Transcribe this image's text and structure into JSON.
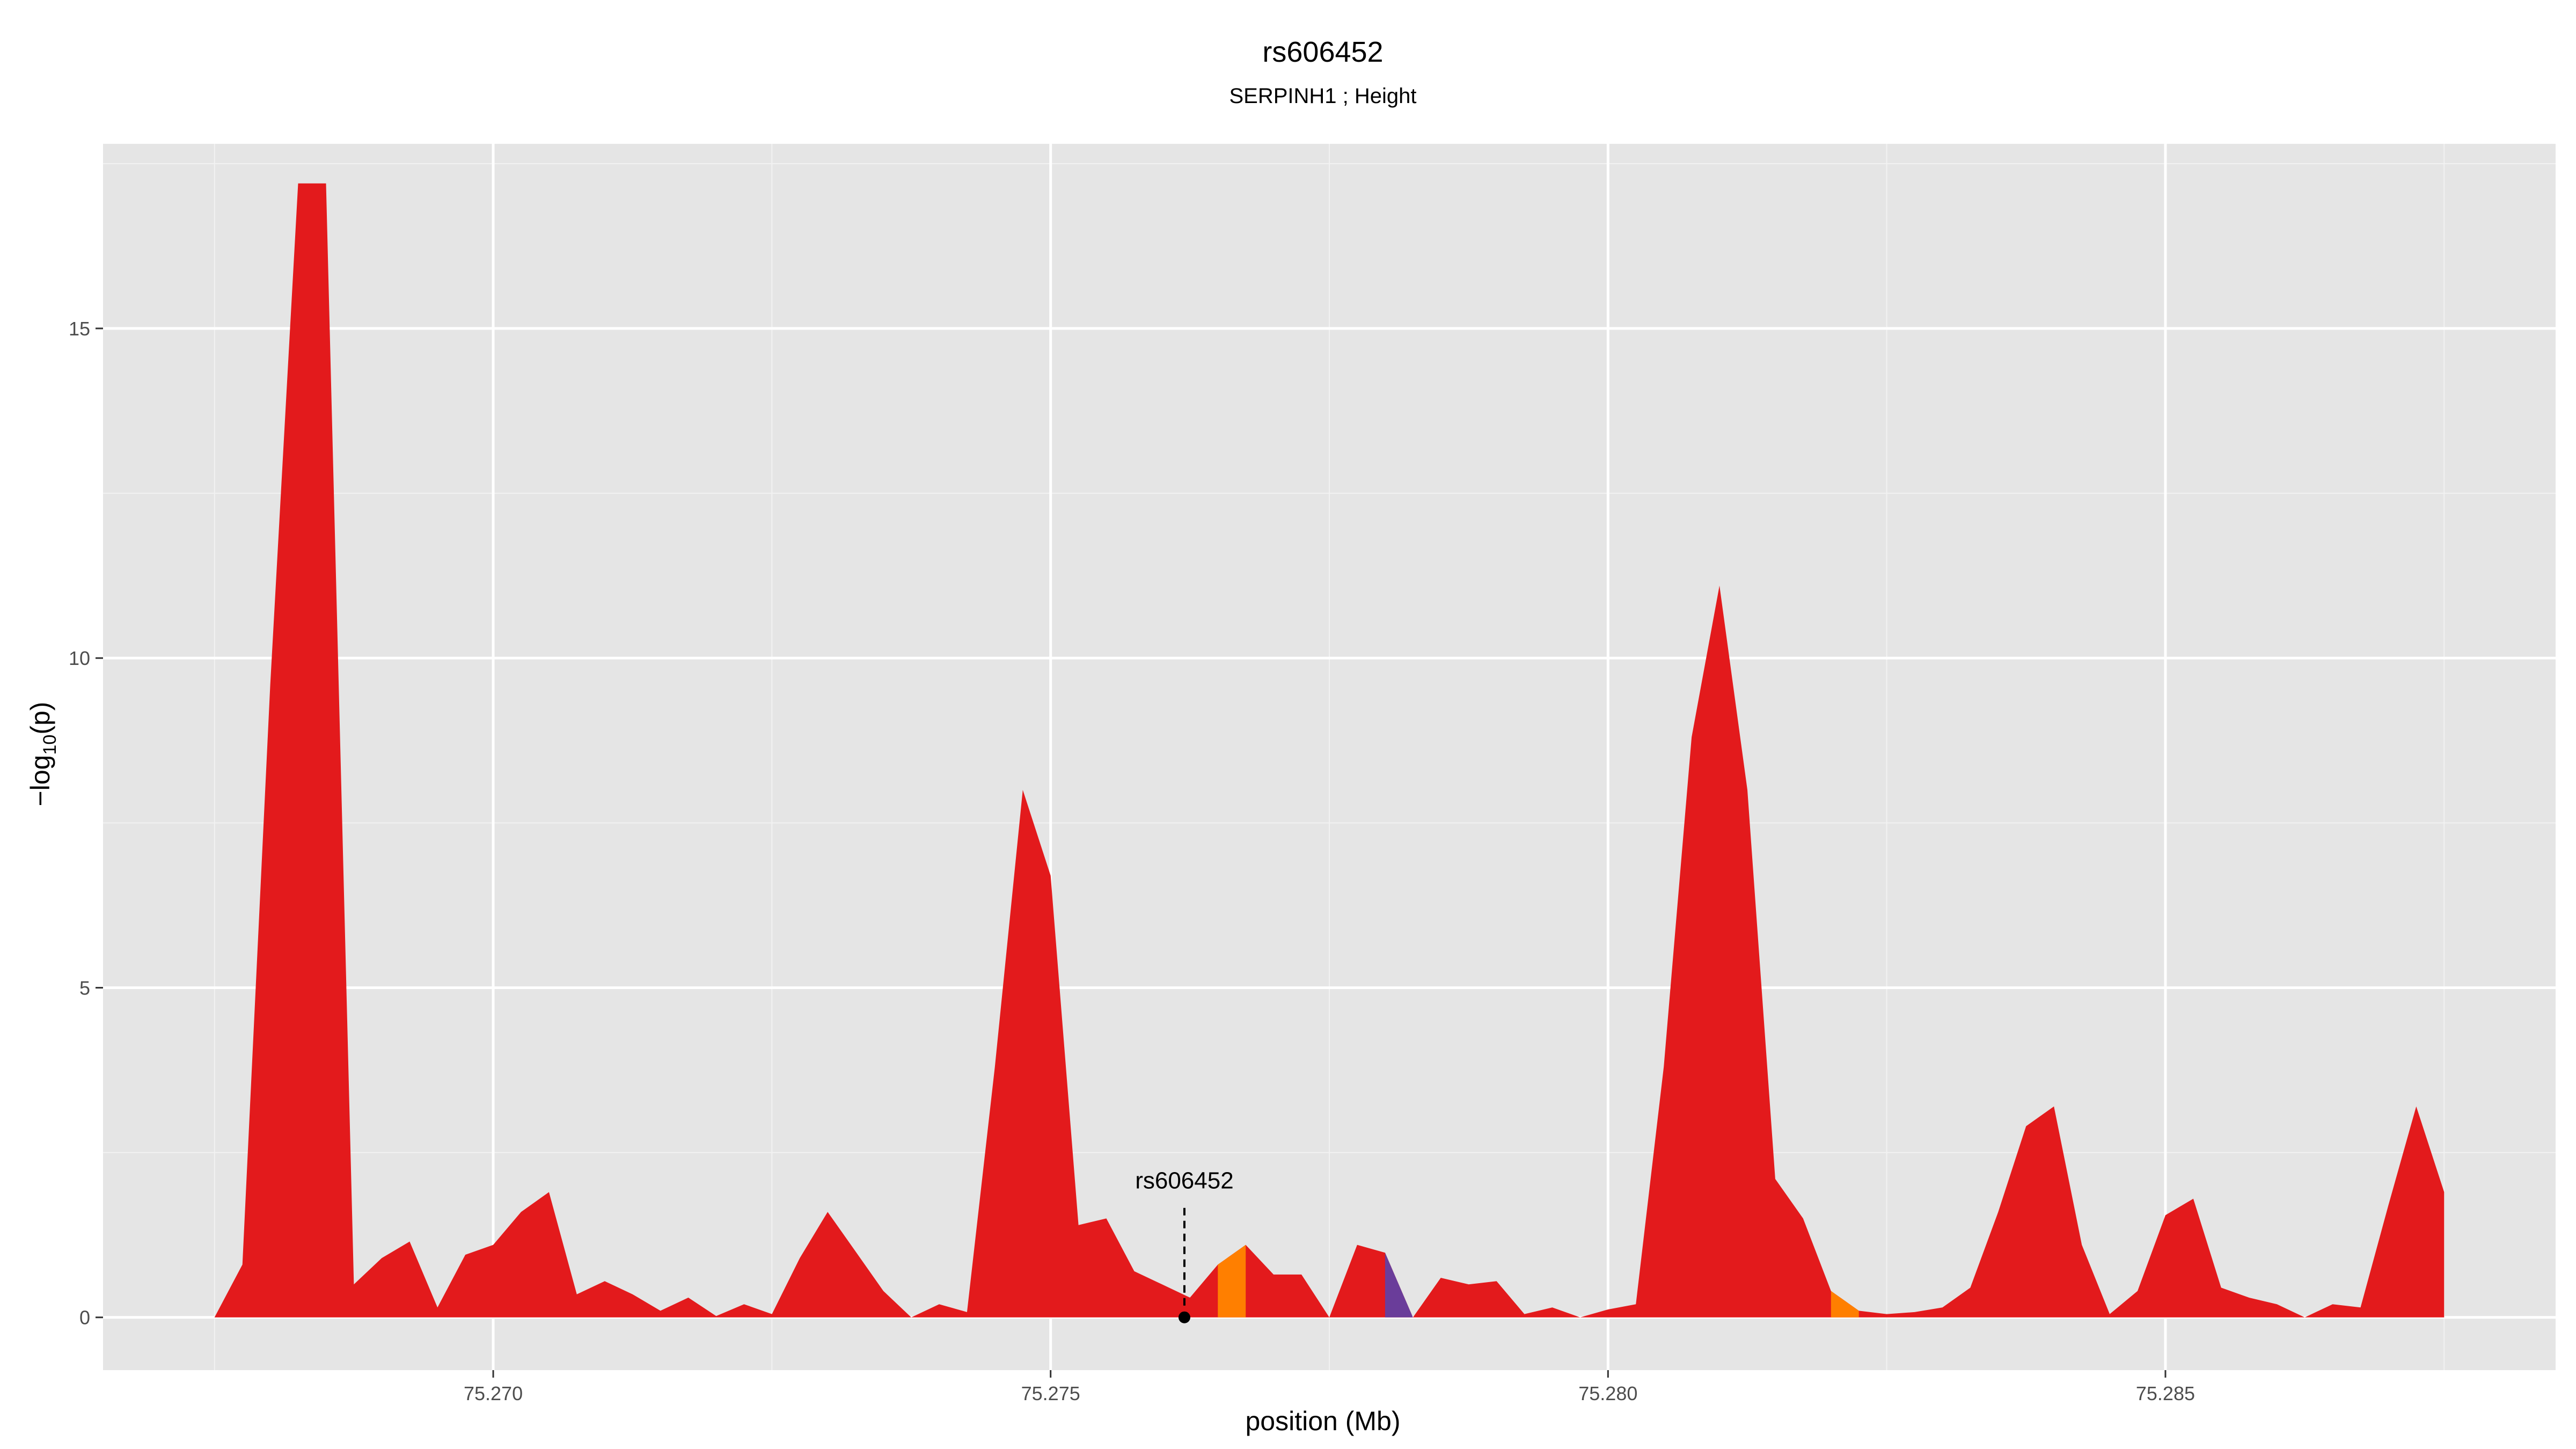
{
  "chart_data": {
    "type": "area",
    "title": "rs606452",
    "subtitle": "SERPINH1 ; Height",
    "xlabel": "position (Mb)",
    "ylabel": "-log10(p)",
    "xlim": [
      75.2665,
      75.2885
    ],
    "ylim": [
      -0.8,
      17.8
    ],
    "x_ticks": [
      75.27,
      75.275,
      75.28,
      75.285
    ],
    "x_tick_labels": [
      "75.270",
      "75.275",
      "75.280",
      "75.285"
    ],
    "y_ticks": [
      0,
      5,
      10,
      15
    ],
    "y_tick_labels": [
      "0",
      "5",
      "10",
      "15"
    ],
    "grid": true,
    "colors": {
      "panel_background": "#e5e5e5",
      "grid_major": "#ffffff",
      "grid_minor": "#f2f2f2",
      "default_fill": "#e31a1c",
      "highlight_fills": [
        "#ff7f00",
        "#6a3d9a"
      ]
    },
    "series": [
      {
        "points": [
          [
            75.2675,
            0.0
          ],
          [
            75.26775,
            0.8
          ],
          [
            75.268,
            9.6
          ],
          [
            75.26825,
            17.2
          ],
          [
            75.2685,
            17.2
          ],
          [
            75.26875,
            0.5
          ],
          [
            75.269,
            0.9
          ],
          [
            75.26925,
            1.15
          ],
          [
            75.2695,
            0.15
          ],
          [
            75.26975,
            0.95
          ],
          [
            75.27,
            1.1
          ],
          [
            75.27025,
            1.6
          ],
          [
            75.2705,
            1.9
          ],
          [
            75.27075,
            0.35
          ],
          [
            75.271,
            0.55
          ],
          [
            75.27125,
            0.35
          ],
          [
            75.2715,
            0.1
          ],
          [
            75.27175,
            0.3
          ],
          [
            75.272,
            0.02
          ],
          [
            75.27225,
            0.2
          ],
          [
            75.2725,
            0.05
          ],
          [
            75.27275,
            0.9
          ],
          [
            75.273,
            1.6
          ],
          [
            75.27325,
            1.0
          ],
          [
            75.2735,
            0.4
          ],
          [
            75.27375,
            0.0
          ],
          [
            75.274,
            0.2
          ],
          [
            75.27425,
            0.08
          ],
          [
            75.2745,
            3.8
          ],
          [
            75.27475,
            8.0
          ],
          [
            75.275,
            6.7
          ],
          [
            75.27525,
            1.4
          ],
          [
            75.2755,
            1.5
          ],
          [
            75.27575,
            0.7
          ],
          [
            75.276,
            0.5
          ],
          [
            75.27625,
            0.3
          ],
          [
            75.2765,
            0.8
          ],
          [
            75.27675,
            1.1
          ],
          [
            75.277,
            0.65
          ],
          [
            75.27725,
            0.65
          ],
          [
            75.2775,
            0.0
          ],
          [
            75.27775,
            1.1
          ],
          [
            75.278,
            0.98
          ],
          [
            75.27825,
            0.0
          ],
          [
            75.2785,
            0.6
          ],
          [
            75.27875,
            0.5
          ],
          [
            75.279,
            0.55
          ],
          [
            75.27925,
            0.05
          ],
          [
            75.2795,
            0.15
          ],
          [
            75.27975,
            0.0
          ],
          [
            75.28,
            0.12
          ],
          [
            75.28025,
            0.2
          ],
          [
            75.2805,
            3.8
          ],
          [
            75.28075,
            8.8
          ],
          [
            75.281,
            11.1
          ],
          [
            75.28125,
            8.0
          ],
          [
            75.2815,
            2.1
          ],
          [
            75.28175,
            1.5
          ],
          [
            75.282,
            0.4
          ],
          [
            75.28225,
            0.1
          ],
          [
            75.2825,
            0.05
          ],
          [
            75.28275,
            0.08
          ],
          [
            75.283,
            0.15
          ],
          [
            75.28325,
            0.45
          ],
          [
            75.2835,
            1.6
          ],
          [
            75.28375,
            2.9
          ],
          [
            75.284,
            3.2
          ],
          [
            75.28425,
            1.1
          ],
          [
            75.2845,
            0.05
          ],
          [
            75.28475,
            0.4
          ],
          [
            75.285,
            1.55
          ],
          [
            75.28525,
            1.8
          ],
          [
            75.2855,
            0.45
          ],
          [
            75.28575,
            0.3
          ],
          [
            75.286,
            0.2
          ],
          [
            75.28625,
            0.0
          ],
          [
            75.2865,
            0.2
          ],
          [
            75.28675,
            0.15
          ],
          [
            75.287,
            1.7
          ],
          [
            75.28725,
            3.2
          ],
          [
            75.2875,
            1.9
          ]
        ]
      }
    ],
    "highlighted_segments": [
      {
        "from": 75.2765,
        "to": 75.27675,
        "color": "#ff7f00"
      },
      {
        "from": 75.278,
        "to": 75.27825,
        "color": "#6a3d9a"
      },
      {
        "from": 75.282,
        "to": 75.28225,
        "color": "#ff7f00"
      }
    ],
    "annotation": {
      "label": "rs606452",
      "x": 75.2762,
      "y": 0.0
    }
  }
}
